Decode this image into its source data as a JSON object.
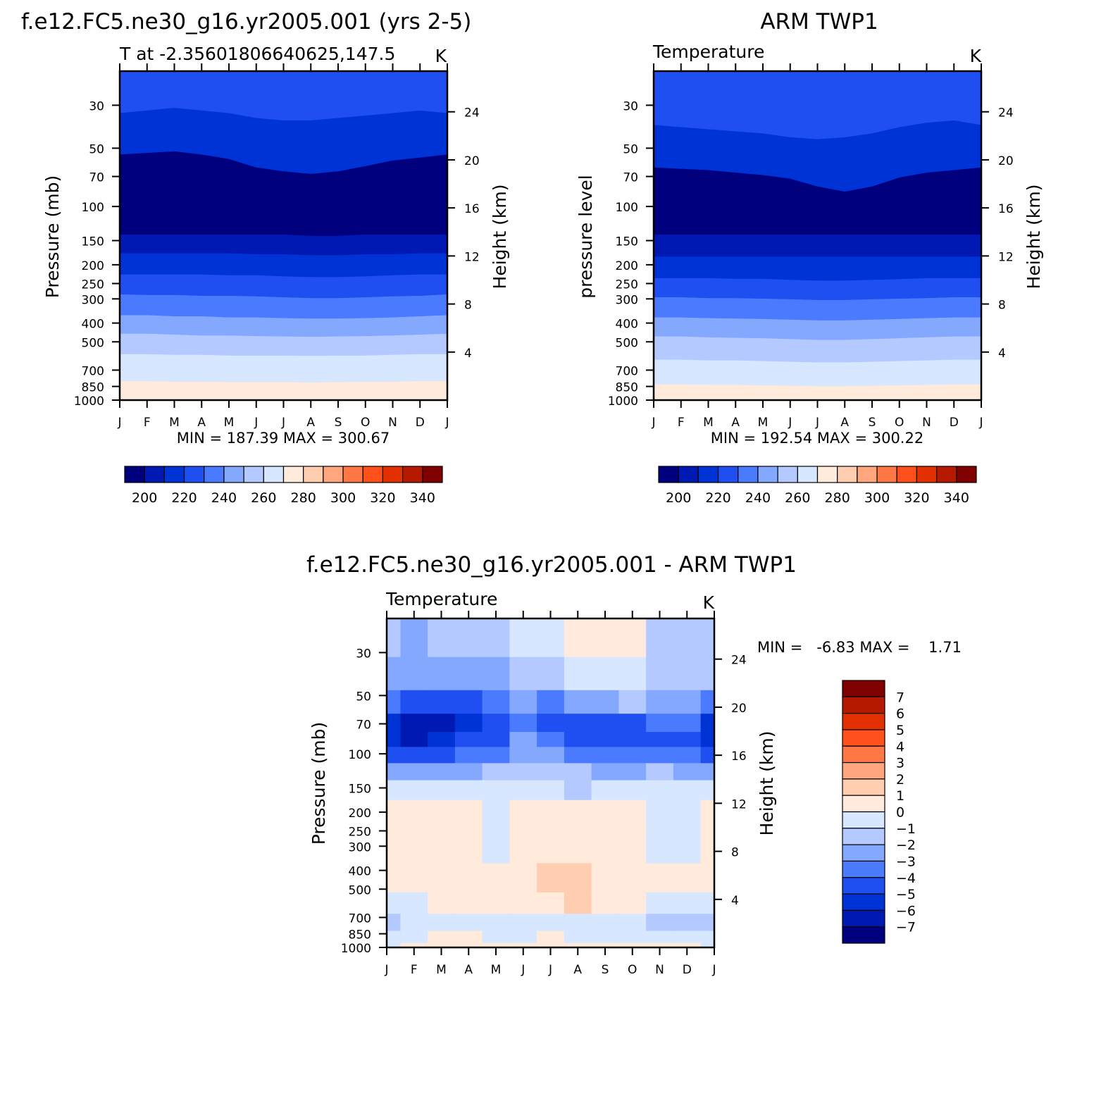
{
  "colors": {
    "levels_abs": [
      "#00007f",
      "#0019b3",
      "#0033d6",
      "#1f4ff0",
      "#4a7bff",
      "#85a8ff",
      "#b4c9ff",
      "#d6e7ff",
      "#ffeadb",
      "#ffcdb0",
      "#ffa67e",
      "#ff7744",
      "#ff4f1b",
      "#e23000",
      "#b51a00",
      "#800000"
    ],
    "levels_diff": [
      "#00007f",
      "#0019b3",
      "#0033d6",
      "#1f4ff0",
      "#4a7bff",
      "#85a8ff",
      "#b4c9ff",
      "#d6e7ff",
      "#ffeadb",
      "#ffcdb0",
      "#ffa67e",
      "#ff7744",
      "#ff4f1b",
      "#e23000",
      "#b51a00",
      "#800000"
    ]
  },
  "chart_data": [
    {
      "id": "model",
      "type": "heatmap",
      "title": "f.e12.FC5.ne30_g16.yr2005.001 (yrs 2-5)",
      "subtitle_left": "T at -2.35601806640625,147.5",
      "subtitle_right": "K",
      "ylabel": "Pressure (mb)",
      "ylabel2": "Height (km)",
      "x_ticks": [
        "J",
        "F",
        "M",
        "A",
        "M",
        "J",
        "J",
        "A",
        "S",
        "O",
        "N",
        "D",
        "J"
      ],
      "y_ticks": [
        30,
        50,
        70,
        100,
        150,
        200,
        250,
        300,
        400,
        500,
        700,
        850,
        1000
      ],
      "y_ticks_right": [
        24,
        20,
        16,
        12,
        8,
        4
      ],
      "ylim_mb": [
        20,
        1000
      ],
      "stats": "MIN = 187.39 MAX = 300.67",
      "levels": [
        200,
        210,
        220,
        230,
        240,
        250,
        260,
        270,
        280,
        290,
        300,
        310,
        320,
        330,
        340
      ],
      "colorbar_labels": [
        "200",
        "220",
        "240",
        "260",
        "280",
        "300",
        "320",
        "340"
      ],
      "band_boundaries_mb": {
        "b0": [
          33,
          32,
          31,
          32,
          33,
          35,
          36,
          36,
          35,
          34,
          33,
          32,
          33
        ],
        "b1": [
          54,
          53,
          52,
          54,
          57,
          63,
          66,
          68,
          66,
          62,
          58,
          56,
          54
        ],
        "b2": [
          140,
          140,
          140,
          140,
          140,
          140,
          140,
          142,
          142,
          140,
          140,
          140,
          140
        ],
        "b3": [
          175,
          175,
          175,
          175,
          175,
          177,
          177,
          179,
          179,
          177,
          177,
          175,
          175
        ],
        "b4": [
          225,
          225,
          225,
          225,
          227,
          227,
          230,
          232,
          232,
          230,
          227,
          225,
          225
        ],
        "b5": [
          285,
          287,
          287,
          290,
          290,
          292,
          295,
          298,
          298,
          295,
          292,
          290,
          285
        ],
        "b6": [
          365,
          365,
          370,
          370,
          375,
          375,
          378,
          380,
          380,
          378,
          375,
          370,
          365
        ],
        "b7": [
          455,
          455,
          460,
          465,
          465,
          468,
          470,
          472,
          470,
          468,
          465,
          460,
          455
        ],
        "b8": [
          580,
          580,
          585,
          585,
          590,
          590,
          590,
          592,
          590,
          590,
          585,
          580,
          580
        ],
        "b9": [
          800,
          800,
          805,
          805,
          810,
          810,
          810,
          812,
          810,
          808,
          805,
          800,
          800
        ]
      }
    },
    {
      "id": "obs",
      "type": "heatmap",
      "title": "ARM TWP1",
      "subtitle_left": "Temperature",
      "subtitle_right": "K",
      "ylabel": "pressure level",
      "ylabel2": "Height (km)",
      "x_ticks": [
        "J",
        "F",
        "M",
        "A",
        "M",
        "J",
        "J",
        "A",
        "S",
        "O",
        "N",
        "D",
        "J"
      ],
      "y_ticks": [
        30,
        50,
        70,
        100,
        150,
        200,
        250,
        300,
        400,
        500,
        700,
        850,
        1000
      ],
      "y_ticks_right": [
        24,
        20,
        16,
        12,
        8,
        4
      ],
      "ylim_mb": [
        20,
        1000
      ],
      "stats": "MIN = 192.54 MAX = 300.22",
      "levels": [
        200,
        210,
        220,
        230,
        240,
        250,
        260,
        270,
        280,
        290,
        300,
        310,
        320,
        330,
        340
      ],
      "colorbar_labels": [
        "200",
        "220",
        "240",
        "260",
        "280",
        "300",
        "320",
        "340"
      ],
      "band_boundaries_mb": {
        "b0": [
          38,
          39,
          40,
          41,
          42,
          44,
          45,
          44,
          42,
          39,
          37,
          36,
          38
        ],
        "b1": [
          63,
          64,
          65,
          67,
          69,
          72,
          79,
          84,
          79,
          71,
          67,
          65,
          63
        ],
        "b2": [
          140,
          140,
          140,
          140,
          140,
          140,
          140,
          140,
          140,
          140,
          140,
          140,
          140
        ],
        "b3": [
          182,
          182,
          182,
          182,
          182,
          182,
          182,
          182,
          182,
          182,
          182,
          182,
          182
        ],
        "b4": [
          235,
          235,
          235,
          237,
          237,
          240,
          242,
          242,
          240,
          238,
          235,
          235,
          235
        ],
        "b5": [
          295,
          295,
          298,
          298,
          300,
          302,
          305,
          305,
          302,
          300,
          298,
          295,
          295
        ],
        "b6": [
          375,
          375,
          378,
          380,
          382,
          385,
          388,
          388,
          385,
          382,
          378,
          375,
          375
        ],
        "b7": [
          470,
          470,
          475,
          478,
          480,
          485,
          490,
          490,
          485,
          480,
          475,
          470,
          470
        ],
        "b8": [
          620,
          620,
          625,
          625,
          630,
          635,
          640,
          640,
          635,
          630,
          625,
          620,
          620
        ],
        "b9": [
          830,
          830,
          835,
          835,
          840,
          845,
          850,
          850,
          845,
          840,
          835,
          830,
          830
        ]
      }
    },
    {
      "id": "diff",
      "type": "heatmap",
      "title": "f.e12.FC5.ne30_g16.yr2005.001 - ARM TWP1",
      "subtitle_left": "Temperature",
      "subtitle_right": "K",
      "ylabel": "Pressure (mb)",
      "ylabel2": "Height (km)",
      "x_ticks": [
        "J",
        "F",
        "M",
        "A",
        "M",
        "J",
        "J",
        "A",
        "S",
        "O",
        "N",
        "D",
        "J"
      ],
      "y_ticks": [
        30,
        50,
        70,
        100,
        150,
        200,
        250,
        300,
        400,
        500,
        700,
        850,
        1000
      ],
      "y_ticks_right": [
        24,
        20,
        16,
        12,
        8,
        4
      ],
      "ylim_mb": [
        20,
        1000
      ],
      "stats": "MIN =   -6.83 MAX =    1.71",
      "levels": [
        -7,
        -6,
        -5,
        -4,
        -3,
        -2,
        -1,
        0,
        1,
        2,
        3,
        4,
        5,
        6,
        7
      ],
      "colorbar_labels": [
        "7",
        "6",
        "5",
        "4",
        "3",
        "2",
        "1",
        "0",
        "−1",
        "−2",
        "−3",
        "−4",
        "−5",
        "−6",
        "−7"
      ],
      "pressure_levels_mb": [
        25,
        40,
        55,
        70,
        85,
        100,
        125,
        150,
        200,
        300,
        450,
        600,
        750,
        900,
        1000
      ],
      "values": [
        [
          -1.6,
          -2.2,
          -1.8,
          -1.5,
          -1.2,
          -0.8,
          -0.5,
          0.2,
          0.2,
          0.3,
          -1.2,
          -1.3,
          -1.8
        ],
        [
          -2.3,
          -2.5,
          -2.8,
          -2.7,
          -2.2,
          -1.6,
          -1.2,
          -0.8,
          -0.7,
          -0.7,
          -1.6,
          -1.6,
          -2.0
        ],
        [
          -3.8,
          -4.2,
          -4.8,
          -4.6,
          -3.6,
          -2.8,
          -3.2,
          -3.0,
          -2.4,
          -1.6,
          -2.2,
          -2.3,
          -3.2
        ],
        [
          -5.2,
          -6.2,
          -6.6,
          -5.8,
          -4.4,
          -3.2,
          -4.5,
          -4.6,
          -4.2,
          -4.3,
          -3.6,
          -4.0,
          -5.2
        ],
        [
          -5.6,
          -6.4,
          -5.8,
          -5.0,
          -4.2,
          -3.0,
          -3.4,
          -4.2,
          -4.6,
          -4.6,
          -4.4,
          -4.6,
          -5.6
        ],
        [
          -4.5,
          -4.3,
          -4.2,
          -3.8,
          -3.2,
          -2.5,
          -2.2,
          -3.2,
          -3.5,
          -3.6,
          -3.4,
          -3.8,
          -4.5
        ],
        [
          -3.0,
          -2.5,
          -2.6,
          -2.4,
          -2.0,
          -1.5,
          -1.2,
          -1.6,
          -2.2,
          -2.2,
          -2.0,
          -2.4,
          -3.0
        ],
        [
          -0.9,
          -0.3,
          -0.4,
          -0.5,
          -0.8,
          -0.6,
          -0.3,
          -1.2,
          -0.5,
          -0.4,
          -0.5,
          -0.4,
          -0.9
        ],
        [
          0.2,
          0.5,
          0.5,
          0.4,
          -0.2,
          0.1,
          0.3,
          0.4,
          0.4,
          0.3,
          -0.3,
          -0.2,
          0.2
        ],
        [
          0.3,
          0.4,
          0.4,
          0.3,
          -0.1,
          0.3,
          0.9,
          0.6,
          0.5,
          0.4,
          -0.2,
          -0.1,
          0.3
        ],
        [
          0.3,
          0.5,
          0.8,
          0.5,
          0.4,
          0.6,
          1.2,
          1.3,
          0.8,
          0.5,
          0.1,
          0.2,
          0.3
        ],
        [
          -0.3,
          -0.1,
          0.1,
          0.2,
          0.3,
          0.5,
          0.9,
          1.1,
          0.6,
          0.1,
          -0.4,
          -0.4,
          -0.3
        ],
        [
          -1.1,
          -0.8,
          -0.4,
          -0.3,
          -0.3,
          -0.4,
          -0.2,
          -0.3,
          -0.4,
          -0.6,
          -1.2,
          -1.2,
          -1.1
        ],
        [
          -0.3,
          -0.1,
          0.2,
          0.1,
          -0.2,
          -0.3,
          0.2,
          -0.1,
          -0.2,
          -0.4,
          -0.6,
          -0.7,
          -0.3
        ],
        [
          -0.1,
          0.3,
          0.4,
          0.3,
          0.1,
          0.2,
          0.4,
          0.3,
          0.2,
          0.1,
          0.1,
          0.0,
          -0.1
        ]
      ]
    }
  ]
}
